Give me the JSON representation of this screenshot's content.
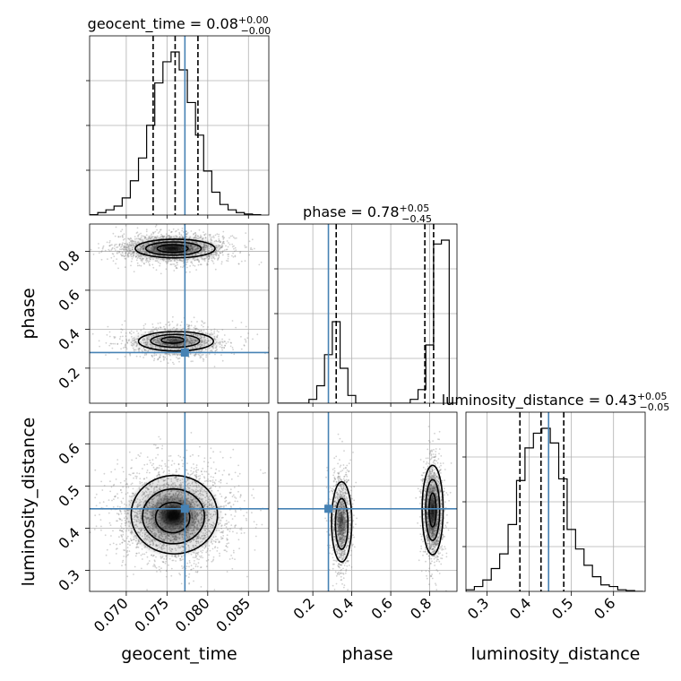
{
  "chart_data": {
    "type": "corner",
    "parameters": [
      {
        "name": "geocent_time",
        "title": {
          "main": "geocent_time = 0.08",
          "sup": "+0.00",
          "sub": "−0.00"
        },
        "range": [
          0.0655,
          0.0875
        ],
        "ticks": [
          "0.070",
          "0.075",
          "0.080",
          "0.085"
        ],
        "tick_values": [
          0.07,
          0.075,
          0.08,
          0.085
        ],
        "quantiles": [
          0.0733,
          0.076,
          0.0788
        ],
        "truth": 0.0772,
        "hist_edges": [
          0.0655,
          0.0665,
          0.0675,
          0.0685,
          0.0695,
          0.0705,
          0.0715,
          0.0725,
          0.0735,
          0.0745,
          0.0755,
          0.0765,
          0.0775,
          0.0785,
          0.0795,
          0.0805,
          0.0815,
          0.0825,
          0.0835,
          0.0845,
          0.0855,
          0.0865
        ],
        "hist_counts": [
          0.2,
          1.5,
          3.2,
          5.5,
          10.5,
          21,
          35,
          55,
          81,
          94,
          100,
          89,
          69,
          49,
          27,
          14,
          6.5,
          3.2,
          1.5,
          0.6,
          0.2
        ]
      },
      {
        "name": "phase",
        "title": {
          "main": "phase = 0.78",
          "sup": "+0.05",
          "sub": "−0.45"
        },
        "range": [
          0.02,
          0.94
        ],
        "ticks": [
          "0.2",
          "0.4",
          "0.6",
          "0.8"
        ],
        "tick_values": [
          0.2,
          0.4,
          0.6,
          0.8
        ],
        "quantiles": [
          0.32,
          0.775,
          0.82
        ],
        "truth": 0.28,
        "hist_edges": [
          0.02,
          0.06,
          0.1,
          0.14,
          0.18,
          0.22,
          0.26,
          0.3,
          0.34,
          0.38,
          0.42,
          0.46,
          0.5,
          0.54,
          0.58,
          0.62,
          0.66,
          0.7,
          0.74,
          0.78,
          0.82,
          0.86,
          0.9,
          0.94
        ],
        "hist_counts": [
          0,
          0,
          0,
          0,
          2,
          9,
          25,
          42,
          18,
          4,
          0,
          0,
          0,
          0,
          0,
          0,
          0,
          2,
          7,
          30,
          82,
          84,
          0
        ]
      },
      {
        "name": "luminosity_distance",
        "title": {
          "main": "luminosity_distance = 0.43",
          "sup": "+0.05",
          "sub": "−0.05"
        },
        "range": [
          0.25,
          0.675
        ],
        "ticks": [
          "0.3",
          "0.4",
          "0.5",
          "0.6"
        ],
        "tick_values": [
          0.3,
          0.4,
          0.5,
          0.6
        ],
        "quantiles": [
          0.378,
          0.428,
          0.482
        ],
        "truth": 0.446,
        "hist_edges": [
          0.25,
          0.27,
          0.29,
          0.31,
          0.33,
          0.35,
          0.37,
          0.39,
          0.41,
          0.43,
          0.45,
          0.47,
          0.49,
          0.51,
          0.53,
          0.55,
          0.57,
          0.59,
          0.61,
          0.63,
          0.65,
          0.67
        ],
        "hist_counts": [
          1,
          3,
          7,
          14,
          23,
          41,
          68,
          88,
          97,
          100,
          91,
          69,
          38,
          26,
          16,
          9,
          4,
          3,
          1,
          0.5,
          0
        ]
      }
    ],
    "grid": true
  }
}
